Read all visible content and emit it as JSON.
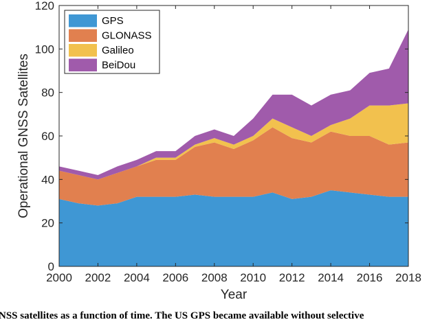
{
  "chart_data": {
    "type": "area",
    "stacked": true,
    "title": "",
    "xlabel": "Year",
    "ylabel": "Operational GNSS Satellites",
    "xlim": [
      2000,
      2018
    ],
    "ylim": [
      0,
      120
    ],
    "xticks": [
      2000,
      2002,
      2004,
      2006,
      2008,
      2010,
      2012,
      2014,
      2016,
      2018
    ],
    "yticks": [
      0,
      20,
      40,
      60,
      80,
      100,
      120
    ],
    "x": [
      2000,
      2001,
      2002,
      2003,
      2004,
      2005,
      2006,
      2007,
      2008,
      2009,
      2010,
      2011,
      2012,
      2013,
      2014,
      2015,
      2016,
      2017,
      2018
    ],
    "legend_position": "top-left",
    "grid": false,
    "series": [
      {
        "name": "GPS",
        "color": "#3f97d4",
        "values": [
          31,
          29,
          28,
          29,
          32,
          32,
          32,
          33,
          32,
          32,
          32,
          34,
          31,
          32,
          35,
          34,
          33,
          32,
          32
        ]
      },
      {
        "name": "GLONASS",
        "color": "#e1804f",
        "values": [
          13,
          13,
          12,
          14,
          14,
          17,
          17,
          22,
          25,
          22,
          26,
          30,
          28,
          25,
          27,
          26,
          27,
          24,
          25
        ]
      },
      {
        "name": "Galileo",
        "color": "#f2c14e",
        "values": [
          0,
          0,
          0,
          0,
          0,
          1,
          1,
          1,
          2,
          2,
          2,
          4,
          5,
          3,
          3,
          8,
          14,
          18,
          18
        ]
      },
      {
        "name": "BeiDou",
        "color": "#a05bab",
        "values": [
          2,
          2,
          2,
          3,
          3,
          3,
          3,
          4,
          4,
          4,
          8,
          11,
          15,
          14,
          14,
          13,
          15,
          17,
          34
        ]
      }
    ]
  },
  "caption": "NSS satellites as a function of time. The US GPS became available without selective"
}
